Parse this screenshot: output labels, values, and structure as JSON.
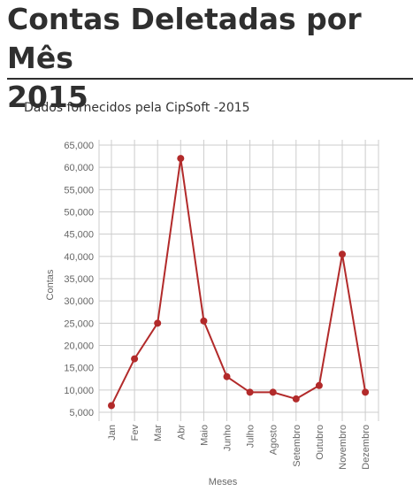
{
  "header": {
    "title_line1": "Contas Deletadas por Mês",
    "title_line2": "2015"
  },
  "subtitle": "Dados fornecidos pela CipSoft -2015",
  "colors": {
    "line": "#b22a2a",
    "grid": "#cccccc",
    "axis_text": "#666666"
  },
  "chart_data": {
    "type": "line",
    "title": "",
    "xlabel": "Meses",
    "ylabel": "Contas",
    "categories": [
      "Jan",
      "Fev",
      "Mar",
      "Abr",
      "Maio",
      "Junho",
      "Julho",
      "Agosto",
      "Setembro",
      "Outubro",
      "Novembro",
      "Dezembro"
    ],
    "values": [
      6500,
      17000,
      25000,
      62000,
      25500,
      13000,
      9500,
      9500,
      8000,
      11000,
      40500,
      9500
    ],
    "yticks": [
      "65,000",
      "60,000",
      "55,000",
      "50,000",
      "45,000",
      "40,000",
      "35,000",
      "30,000",
      "25,000",
      "20,000",
      "15,000",
      "10,000",
      "5,000"
    ],
    "ylim": [
      5000,
      65000
    ],
    "grid": true,
    "legend": "none"
  }
}
